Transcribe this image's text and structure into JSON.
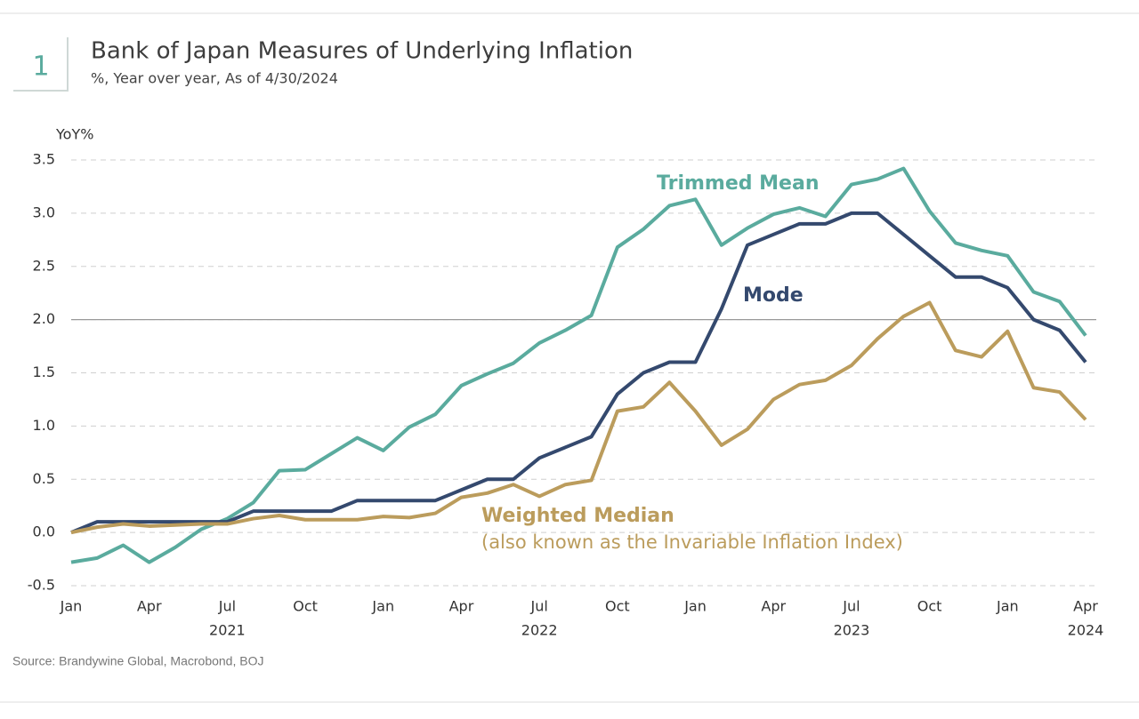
{
  "header": {
    "number": "1"
  },
  "chart_data": {
    "type": "line",
    "title": "Bank of Japan Measures of Underlying Inflation",
    "subtitle": "%, Year over year, As of 4/30/2024",
    "y_axis_label": "YoY%",
    "source": "Source: Brandywine Global, Macrobond, BOJ",
    "x": [
      "2021-01",
      "2021-02",
      "2021-03",
      "2021-04",
      "2021-05",
      "2021-06",
      "2021-07",
      "2021-08",
      "2021-09",
      "2021-10",
      "2021-11",
      "2021-12",
      "2022-01",
      "2022-02",
      "2022-03",
      "2022-04",
      "2022-05",
      "2022-06",
      "2022-07",
      "2022-08",
      "2022-09",
      "2022-10",
      "2022-11",
      "2022-12",
      "2023-01",
      "2023-02",
      "2023-03",
      "2023-04",
      "2023-05",
      "2023-06",
      "2023-07",
      "2023-08",
      "2023-09",
      "2023-10",
      "2023-11",
      "2023-12",
      "2024-01",
      "2024-02",
      "2024-03",
      "2024-04"
    ],
    "xlim": [
      "2021-01",
      "2024-04"
    ],
    "xticks": [
      {
        "value": "2021-01",
        "label": "Jan"
      },
      {
        "value": "2021-04",
        "label": "Apr"
      },
      {
        "value": "2021-07",
        "label": "Jul"
      },
      {
        "value": "2021-10",
        "label": "Oct"
      },
      {
        "value": "2022-01",
        "label": "Jan"
      },
      {
        "value": "2022-04",
        "label": "Apr"
      },
      {
        "value": "2022-07",
        "label": "Jul"
      },
      {
        "value": "2022-10",
        "label": "Oct"
      },
      {
        "value": "2023-01",
        "label": "Jan"
      },
      {
        "value": "2023-04",
        "label": "Apr"
      },
      {
        "value": "2023-07",
        "label": "Jul"
      },
      {
        "value": "2023-10",
        "label": "Oct"
      },
      {
        "value": "2024-01",
        "label": "Jan"
      },
      {
        "value": "2024-04",
        "label": "Apr"
      }
    ],
    "xticks_year": [
      {
        "value": "2021-07",
        "label": "2021"
      },
      {
        "value": "2022-07",
        "label": "2022"
      },
      {
        "value": "2023-07",
        "label": "2023"
      },
      {
        "value": "2024-04",
        "label": "2024"
      }
    ],
    "ylim": [
      -0.5,
      3.5
    ],
    "yticks": [
      {
        "value": -0.5,
        "label": "-0.5"
      },
      {
        "value": 0,
        "label": "0.0"
      },
      {
        "value": 0.5,
        "label": "0.5"
      },
      {
        "value": 1,
        "label": "1.0"
      },
      {
        "value": 1.5,
        "label": "1.5"
      },
      {
        "value": 2,
        "label": "2.0"
      },
      {
        "value": 2.5,
        "label": "2.5"
      },
      {
        "value": 3,
        "label": "3.0"
      },
      {
        "value": 3.5,
        "label": "3.5"
      }
    ],
    "reference_line": 2,
    "grid": true,
    "series": [
      {
        "name": "Trimmed Mean",
        "color": "#5aab9e",
        "values": [
          -0.28,
          -0.24,
          -0.12,
          -0.28,
          -0.14,
          0.03,
          0.13,
          0.28,
          0.58,
          0.59,
          0.74,
          0.89,
          0.77,
          0.99,
          1.11,
          1.38,
          1.49,
          1.59,
          1.78,
          1.9,
          2.04,
          2.68,
          2.85,
          3.07,
          3.13,
          2.7,
          2.86,
          2.99,
          3.05,
          2.97,
          3.27,
          3.32,
          3.42,
          3.02,
          2.72,
          2.65,
          2.6,
          2.26,
          2.17,
          1.85
        ]
      },
      {
        "name": "Mode",
        "color": "#34496e",
        "values": [
          0,
          0.1,
          0.1,
          0.1,
          0.1,
          0.1,
          0.1,
          0.2,
          0.2,
          0.2,
          0.2,
          0.3,
          0.3,
          0.3,
          0.3,
          0.4,
          0.5,
          0.5,
          0.7,
          0.8,
          0.9,
          1.3,
          1.5,
          1.6,
          1.6,
          2.1,
          2.7,
          2.8,
          2.9,
          2.9,
          3.0,
          3.0,
          2.8,
          2.6,
          2.4,
          2.4,
          2.3,
          2.0,
          1.9,
          1.6
        ]
      },
      {
        "name": "Weighted Median",
        "note": "(also known as the Invariable Inflation Index)",
        "color": "#bb9c5c",
        "values": [
          0,
          0.05,
          0.08,
          0.06,
          0.07,
          0.08,
          0.08,
          0.13,
          0.16,
          0.12,
          0.12,
          0.12,
          0.15,
          0.14,
          0.18,
          0.33,
          0.37,
          0.45,
          0.34,
          0.45,
          0.49,
          1.14,
          1.18,
          1.41,
          1.14,
          0.82,
          0.97,
          1.25,
          1.39,
          1.43,
          1.57,
          1.82,
          2.03,
          2.16,
          1.71,
          1.65,
          1.89,
          1.36,
          1.32,
          1.06
        ]
      }
    ]
  }
}
